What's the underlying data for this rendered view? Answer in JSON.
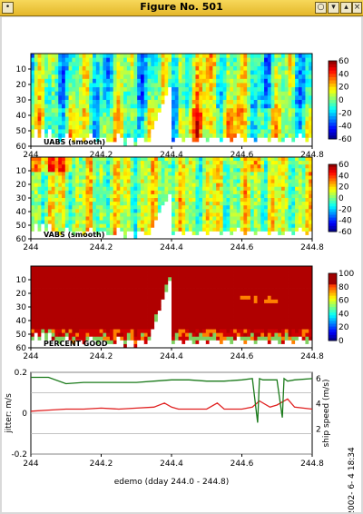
{
  "window": {
    "title": "Figure No. 501",
    "buttons": [
      "circle-button",
      "minimize-button",
      "maximize-button",
      "close-button"
    ]
  },
  "chart_data": [
    {
      "type": "heatmap",
      "panel_label": "UABS (smooth)",
      "x_ticks": [
        "244",
        "244.2",
        "244.4",
        "244.6",
        "244.8"
      ],
      "y_ticks": [
        "10",
        "20",
        "30",
        "40",
        "50",
        "60"
      ],
      "colorbar_ticks": [
        "60",
        "40",
        "20",
        "0",
        "-20",
        "-40",
        "-60"
      ],
      "colorbar_range": [
        -60,
        60
      ],
      "xlim": [
        244.0,
        244.8
      ],
      "ylim": [
        60,
        0
      ]
    },
    {
      "type": "heatmap",
      "panel_label": "VABS (smooth)",
      "x_ticks": [
        "244",
        "244.2",
        "244.4",
        "244.6",
        "244.8"
      ],
      "y_ticks": [
        "10",
        "20",
        "30",
        "40",
        "50",
        "60"
      ],
      "colorbar_ticks": [
        "60",
        "40",
        "20",
        "0",
        "-20",
        "-40",
        "-60"
      ],
      "colorbar_range": [
        -60,
        60
      ],
      "xlim": [
        244.0,
        244.8
      ],
      "ylim": [
        60,
        0
      ]
    },
    {
      "type": "heatmap",
      "panel_label": "PERCENT GOOD",
      "x_ticks": [
        "244",
        "244.2",
        "244.4",
        "244.6",
        "244.8"
      ],
      "y_ticks": [
        "10",
        "20",
        "30",
        "40",
        "50",
        "60"
      ],
      "colorbar_ticks": [
        "100",
        "80",
        "60",
        "40",
        "20",
        "0"
      ],
      "colorbar_range": [
        0,
        100
      ],
      "xlim": [
        244.0,
        244.8
      ],
      "ylim": [
        60,
        0
      ]
    },
    {
      "type": "line",
      "x_ticks": [
        "244",
        "244.2",
        "244.4",
        "244.6",
        "244.8"
      ],
      "left_ticks": [
        "0.2",
        "0",
        "-0.2"
      ],
      "right_ticks": [
        "6",
        "4",
        "2"
      ],
      "left_ylabel": "jitter: m/s",
      "right_ylabel": "ship speed (m/s)",
      "xlabel": "edemo (dday 244.0 - 244.8)",
      "ylim_left": [
        -0.2,
        0.2
      ],
      "ylim_right": [
        0,
        6.5
      ],
      "xlim": [
        244.0,
        244.8
      ],
      "series": [
        {
          "axis": "left",
          "color": "#e02020",
          "x": [
            244.0,
            244.05,
            244.1,
            244.15,
            244.2,
            244.25,
            244.3,
            244.35,
            244.38,
            244.4,
            244.42,
            244.45,
            244.5,
            244.53,
            244.55,
            244.6,
            244.63,
            244.65,
            244.68,
            244.7,
            244.73,
            244.75,
            244.8
          ],
          "y": [
            0.01,
            0.015,
            0.02,
            0.02,
            0.025,
            0.02,
            0.025,
            0.03,
            0.05,
            0.03,
            0.02,
            0.02,
            0.02,
            0.05,
            0.02,
            0.02,
            0.03,
            0.06,
            0.03,
            0.04,
            0.07,
            0.03,
            0.02
          ]
        },
        {
          "axis": "right",
          "color": "#1a7a1a",
          "x": [
            244.0,
            244.05,
            244.1,
            244.15,
            244.2,
            244.25,
            244.3,
            244.35,
            244.4,
            244.45,
            244.5,
            244.55,
            244.6,
            244.63,
            244.645,
            244.65,
            244.66,
            244.7,
            244.715,
            244.72,
            244.73,
            244.75,
            244.8
          ],
          "y": [
            6.1,
            6.1,
            5.6,
            5.7,
            5.7,
            5.7,
            5.7,
            5.8,
            5.9,
            5.9,
            5.8,
            5.8,
            5.9,
            6.0,
            2.5,
            6.0,
            5.9,
            5.9,
            2.9,
            6.0,
            5.8,
            5.9,
            6.0
          ]
        }
      ]
    }
  ],
  "timestamp": "2002- 6- 4  18:34"
}
